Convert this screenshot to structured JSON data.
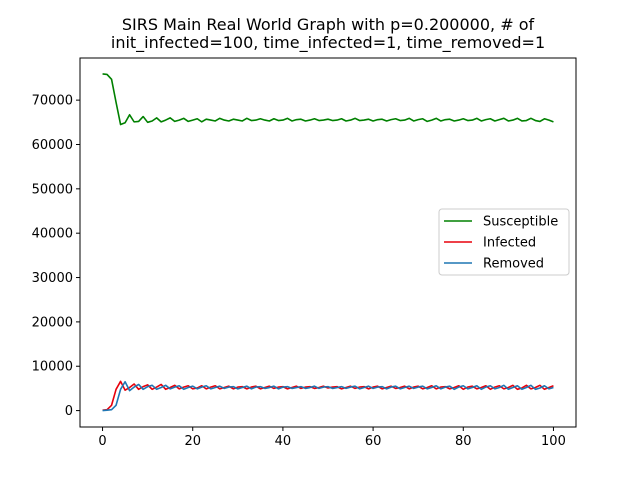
{
  "chart_data": {
    "type": "line",
    "title_lines": [
      "SIRS Main Real World Graph with p=0.200000, # of",
      "init_infected=100, time_infected=1, time_removed=1"
    ],
    "xlabel": "",
    "ylabel": "",
    "xlim": [
      -5,
      105
    ],
    "ylim": [
      -3700,
      79500
    ],
    "xticks": [
      0,
      20,
      40,
      60,
      80,
      100
    ],
    "xtick_labels": [
      "0",
      "20",
      "40",
      "60",
      "80",
      "100"
    ],
    "yticks": [
      0,
      10000,
      20000,
      30000,
      40000,
      50000,
      60000,
      70000
    ],
    "ytick_labels": [
      "0",
      "10000",
      "20000",
      "30000",
      "40000",
      "50000",
      "60000",
      "70000"
    ],
    "grid": false,
    "legend_position": "center-right",
    "series": [
      {
        "name": "Susceptible",
        "color": "#008000",
        "x": [
          0,
          1,
          2,
          3,
          4,
          5,
          6,
          7,
          8,
          9,
          10,
          11,
          12,
          13,
          14,
          15,
          16,
          17,
          18,
          19,
          20,
          21,
          22,
          23,
          24,
          25,
          26,
          27,
          28,
          29,
          30,
          31,
          32,
          33,
          34,
          35,
          36,
          37,
          38,
          39,
          40,
          41,
          42,
          43,
          44,
          45,
          46,
          47,
          48,
          49,
          50,
          51,
          52,
          53,
          54,
          55,
          56,
          57,
          58,
          59,
          60,
          61,
          62,
          63,
          64,
          65,
          66,
          67,
          68,
          69,
          70,
          71,
          72,
          73,
          74,
          75,
          76,
          77,
          78,
          79,
          80,
          81,
          82,
          83,
          84,
          85,
          86,
          87,
          88,
          89,
          90,
          91,
          92,
          93,
          94,
          95,
          96,
          97,
          98,
          99,
          100
        ],
        "values": [
          75900,
          75800,
          74700,
          69500,
          64500,
          64900,
          66700,
          65100,
          65200,
          66300,
          65000,
          65300,
          66000,
          65100,
          65500,
          66000,
          65200,
          65500,
          65900,
          65200,
          65500,
          65800,
          65100,
          65700,
          65500,
          65300,
          65900,
          65500,
          65300,
          65700,
          65500,
          65300,
          65900,
          65400,
          65500,
          65800,
          65500,
          65300,
          65800,
          65400,
          65500,
          65900,
          65300,
          65600,
          65700,
          65300,
          65500,
          65800,
          65400,
          65500,
          65700,
          65400,
          65500,
          65800,
          65300,
          65500,
          65900,
          65400,
          65500,
          65700,
          65300,
          65600,
          65700,
          65300,
          65600,
          65800,
          65400,
          65500,
          65900,
          65300,
          65600,
          65800,
          65200,
          65500,
          65900,
          65300,
          65600,
          65700,
          65300,
          65500,
          65800,
          65400,
          65500,
          65900,
          65300,
          65600,
          65800,
          65300,
          65600,
          65900,
          65300,
          65500,
          65900,
          65300,
          65400,
          65900,
          65400,
          65200,
          65800,
          65500,
          65100
        ]
      },
      {
        "name": "Infected",
        "color": "#e8000b",
        "x": [
          0,
          1,
          2,
          3,
          4,
          5,
          6,
          7,
          8,
          9,
          10,
          11,
          12,
          13,
          14,
          15,
          16,
          17,
          18,
          19,
          20,
          21,
          22,
          23,
          24,
          25,
          26,
          27,
          28,
          29,
          30,
          31,
          32,
          33,
          34,
          35,
          36,
          37,
          38,
          39,
          40,
          41,
          42,
          43,
          44,
          45,
          46,
          47,
          48,
          49,
          50,
          51,
          52,
          53,
          54,
          55,
          56,
          57,
          58,
          59,
          60,
          61,
          62,
          63,
          64,
          65,
          66,
          67,
          68,
          69,
          70,
          71,
          72,
          73,
          74,
          75,
          76,
          77,
          78,
          79,
          80,
          81,
          82,
          83,
          84,
          85,
          86,
          87,
          88,
          89,
          90,
          91,
          92,
          93,
          94,
          95,
          96,
          97,
          98,
          99,
          100
        ],
        "values": [
          100,
          200,
          1200,
          4800,
          6600,
          4600,
          5200,
          6000,
          4800,
          5400,
          5800,
          4800,
          5300,
          5900,
          4800,
          5200,
          5700,
          4900,
          5300,
          5600,
          4900,
          5100,
          5600,
          4900,
          5300,
          5600,
          4900,
          5200,
          5500,
          4900,
          5300,
          5400,
          4900,
          5300,
          5500,
          4900,
          5200,
          5500,
          5000,
          5300,
          5400,
          4900,
          5200,
          5500,
          5000,
          5300,
          5400,
          5000,
          5200,
          5500,
          5100,
          5300,
          5400,
          4900,
          5200,
          5500,
          5000,
          5300,
          5400,
          4900,
          5300,
          5500,
          4900,
          5200,
          5500,
          5000,
          5200,
          5500,
          4900,
          5300,
          5500,
          4900,
          5200,
          5600,
          4900,
          5300,
          5400,
          4900,
          5200,
          5600,
          4800,
          5300,
          5500,
          4900,
          5200,
          5600,
          4800,
          5300,
          5600,
          4900,
          5200,
          5700,
          4800,
          5100,
          5700,
          4900,
          5200,
          5700,
          4800,
          5200,
          5600
        ]
      },
      {
        "name": "Removed",
        "color": "#1f77b4",
        "x": [
          0,
          1,
          2,
          3,
          4,
          5,
          6,
          7,
          8,
          9,
          10,
          11,
          12,
          13,
          14,
          15,
          16,
          17,
          18,
          19,
          20,
          21,
          22,
          23,
          24,
          25,
          26,
          27,
          28,
          29,
          30,
          31,
          32,
          33,
          34,
          35,
          36,
          37,
          38,
          39,
          40,
          41,
          42,
          43,
          44,
          45,
          46,
          47,
          48,
          49,
          50,
          51,
          52,
          53,
          54,
          55,
          56,
          57,
          58,
          59,
          60,
          61,
          62,
          63,
          64,
          65,
          66,
          67,
          68,
          69,
          70,
          71,
          72,
          73,
          74,
          75,
          76,
          77,
          78,
          79,
          80,
          81,
          82,
          83,
          84,
          85,
          86,
          87,
          88,
          89,
          90,
          91,
          92,
          93,
          94,
          95,
          96,
          97,
          98,
          99,
          100
        ],
        "values": [
          0,
          100,
          200,
          1200,
          4800,
          6500,
          4500,
          5300,
          5900,
          4800,
          5400,
          5700,
          4800,
          5200,
          5700,
          4900,
          5300,
          5600,
          4800,
          5200,
          5500,
          4900,
          5300,
          5600,
          4900,
          5200,
          5500,
          5000,
          5300,
          5400,
          4900,
          5200,
          5500,
          4900,
          5300,
          5400,
          5000,
          5200,
          5500,
          4900,
          5300,
          5400,
          5000,
          5200,
          5400,
          5000,
          5200,
          5500,
          5000,
          5300,
          5400,
          5000,
          5200,
          5400,
          5000,
          5300,
          5500,
          4900,
          5200,
          5500,
          5000,
          5300,
          5400,
          4900,
          5300,
          5500,
          4900,
          5200,
          5500,
          5000,
          5300,
          5500,
          4900,
          5200,
          5600,
          4900,
          5300,
          5500,
          4800,
          5300,
          5600,
          4900,
          5200,
          5600,
          4800,
          5300,
          5600,
          4900,
          5200,
          5700,
          4800,
          5200,
          5600,
          4800,
          5200,
          5700,
          4800,
          5100,
          5600,
          4900,
          5200
        ]
      }
    ]
  }
}
